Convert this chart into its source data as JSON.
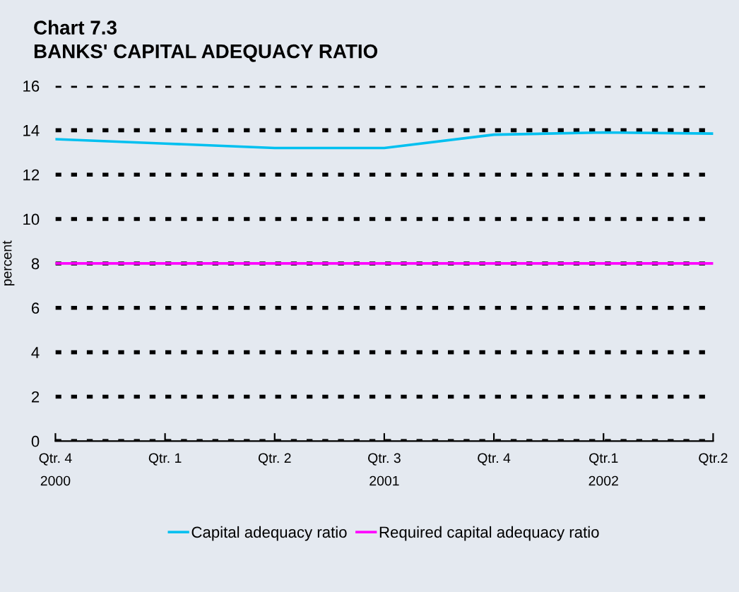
{
  "chart_data": {
    "type": "line",
    "title": "Chart 7.3",
    "subtitle": "BANKS' CAPITAL ADEQUACY RATIO",
    "ylabel": "percent",
    "categories": [
      "Qtr. 4\n2000",
      "Qtr. 1",
      "Qtr. 2",
      "Qtr. 3\n2001",
      "Qtr. 4",
      "Qtr.1\n2002",
      "Qtr.2"
    ],
    "series": [
      {
        "name": "Capital adequacy ratio",
        "color": "#00c0f0",
        "values": [
          13.6,
          13.4,
          13.2,
          13.2,
          13.8,
          13.9,
          13.85
        ]
      },
      {
        "name": "Required capital adequacy ratio",
        "color": "#ff00ff",
        "values": [
          8,
          8,
          8,
          8,
          8,
          8,
          8
        ]
      }
    ],
    "ylim": [
      0,
      16
    ],
    "yticks": [
      0,
      2,
      4,
      6,
      8,
      10,
      12,
      14,
      16
    ],
    "grid": "y",
    "legend": "bottom",
    "marker": "none",
    "line_style": "solid"
  }
}
